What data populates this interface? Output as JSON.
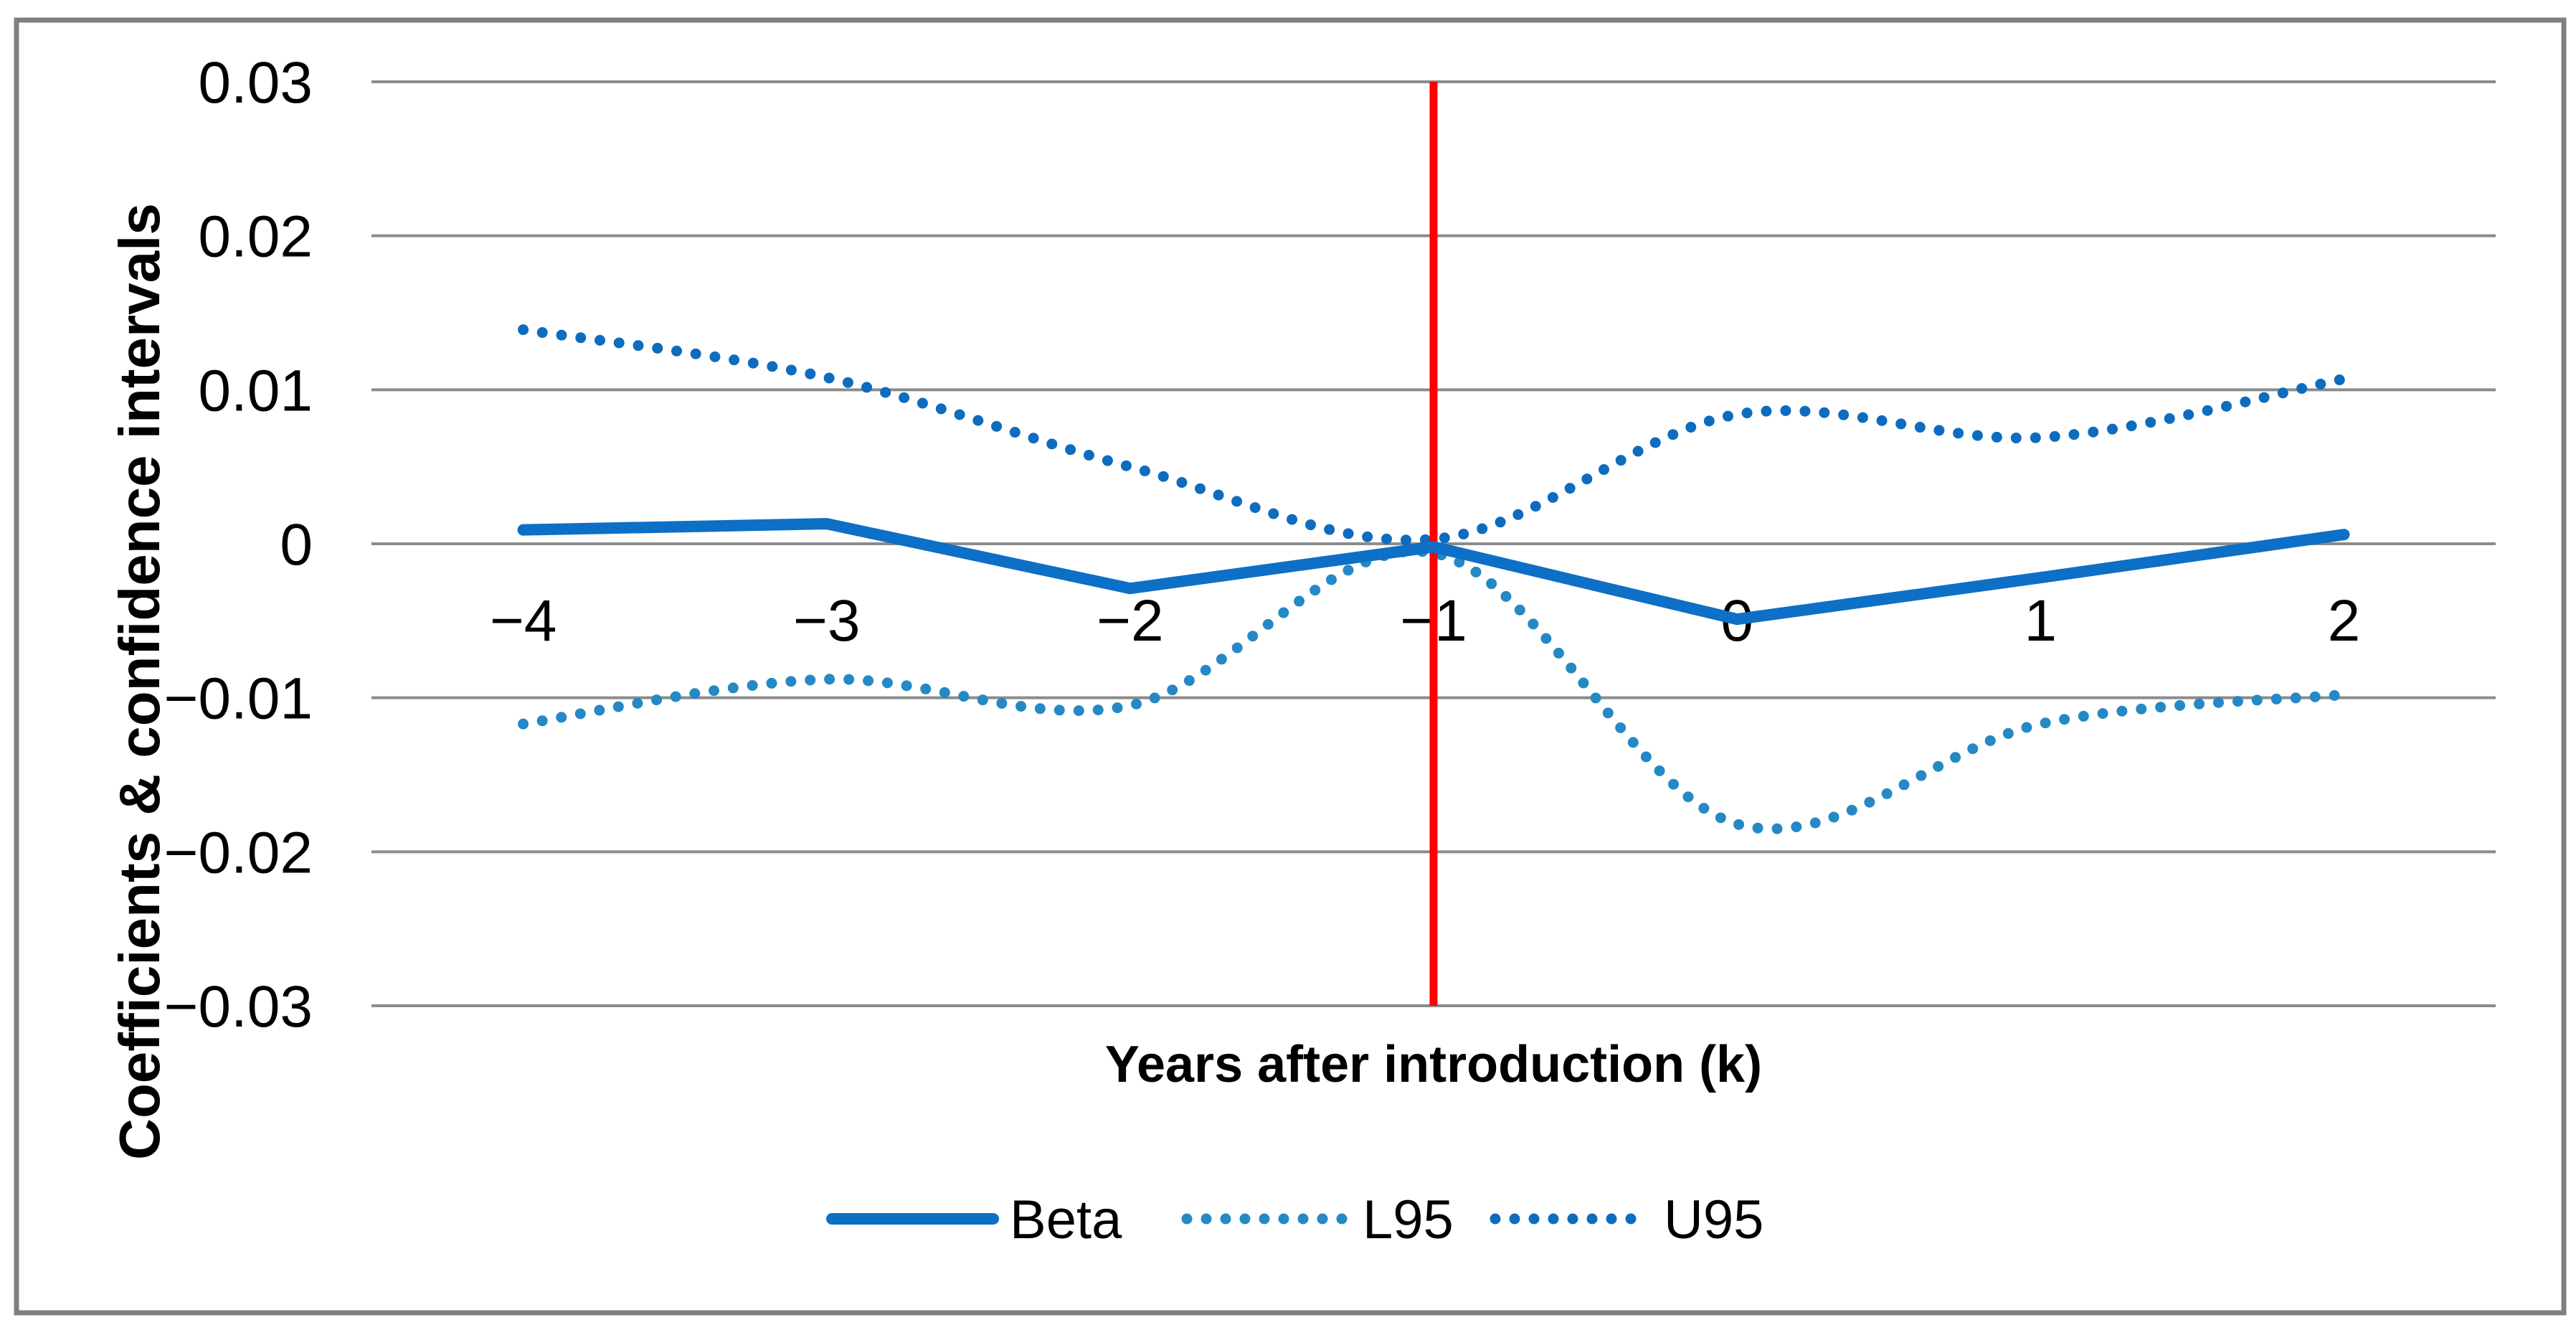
{
  "chart_data": {
    "type": "line",
    "title": "",
    "xlabel": "Years after introduction (k)",
    "ylabel": "Coefficients & confidence intervals",
    "categories": [
      "−4",
      "−3",
      "−2",
      "−1",
      "0",
      "1",
      "2"
    ],
    "x_values": [
      -4,
      -3,
      -2,
      -1,
      0,
      1,
      2
    ],
    "series": [
      {
        "name": "Beta",
        "style": "solid",
        "smooth": false,
        "color": "#0d6fc5",
        "width": 16,
        "values": [
          0.0009,
          0.0013,
          -0.0029,
          -0.0002,
          -0.0049,
          -0.0022,
          0.0006
        ]
      },
      {
        "name": "L95",
        "style": "dotted",
        "smooth": true,
        "color": "#2489c5",
        "width": 15,
        "values": [
          -0.0117,
          -0.0088,
          -0.0105,
          -0.0006,
          -0.0182,
          -0.0117,
          -0.0098
        ]
      },
      {
        "name": "U95",
        "style": "dotted",
        "smooth": true,
        "color": "#0e6cbe",
        "width": 15,
        "values": [
          0.0139,
          0.0108,
          0.005,
          0.0003,
          0.0084,
          0.0069,
          0.0107
        ]
      }
    ],
    "yticks": {
      "values": [
        0.03,
        0.02,
        0.01,
        0,
        -0.01,
        -0.02,
        -0.03
      ],
      "labels": [
        "0.03",
        "0.02",
        "0.01",
        "0",
        "−0.01",
        "−0.02",
        "−0.03"
      ]
    },
    "ylim": [
      -0.03,
      0.03
    ],
    "reference_line": {
      "x": -1,
      "color": "#fe0000",
      "width": 11
    },
    "grid": "horizontal",
    "legend_position": "bottom",
    "colors": {
      "gridline": "#8b8b8b",
      "frame": "#7f7f7f",
      "background": "#ffffff"
    }
  }
}
